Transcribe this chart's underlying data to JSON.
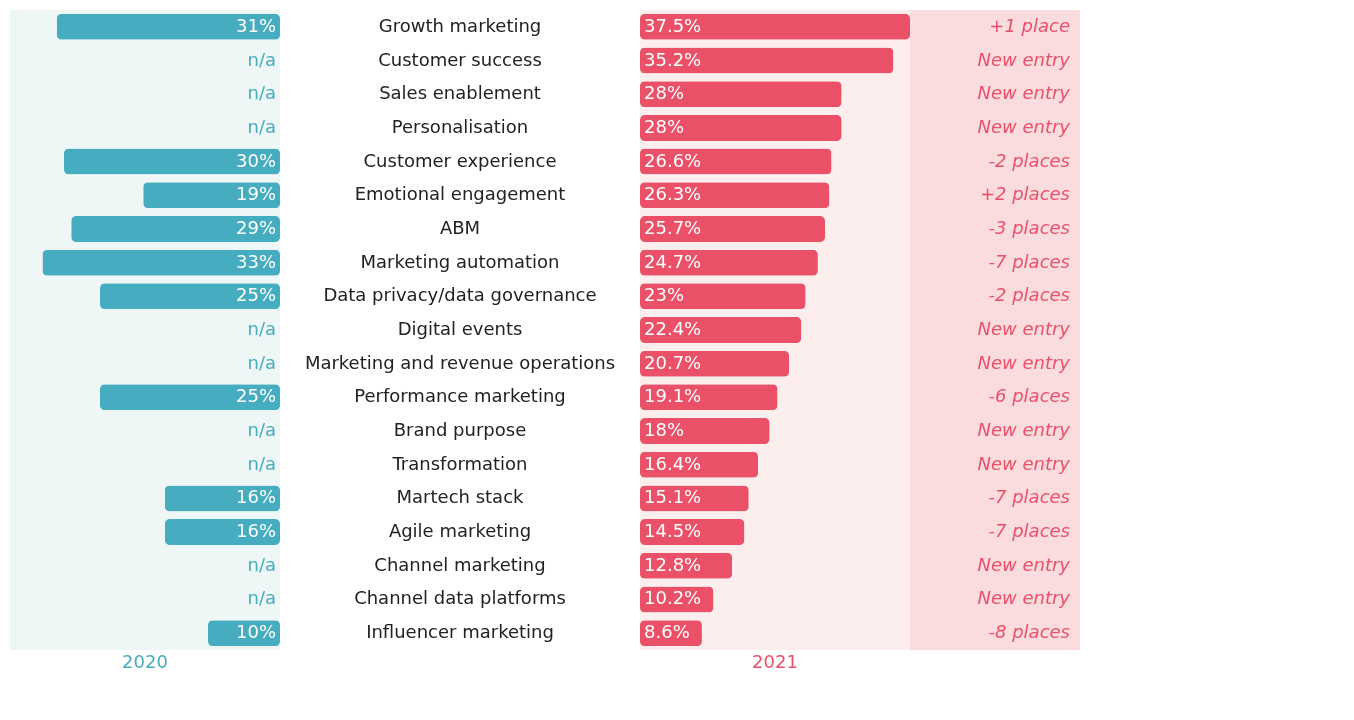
{
  "chart_data": [
    {
      "type": "bar",
      "orientation": "horizontal",
      "categories": [
        "Growth marketing",
        "Customer success",
        "Sales enablement",
        "Personalisation",
        "Customer experience",
        "Emotional engagement",
        "ABM",
        "Marketing automation",
        "Data privacy/data governance",
        "Digital events",
        "Marketing and revenue operations",
        "Performance marketing",
        "Brand purpose",
        "Transformation",
        "Martech stack",
        "Agile marketing",
        "Channel marketing",
        "Channel data platforms",
        "Influencer marketing"
      ],
      "series": [
        {
          "name": "2020",
          "color": "#45adbf",
          "values": [
            31,
            null,
            null,
            null,
            30,
            19,
            29,
            33,
            25,
            null,
            null,
            25,
            null,
            null,
            16,
            16,
            null,
            null,
            10
          ],
          "value_labels": [
            "31%",
            "n/a",
            "n/a",
            "n/a",
            "30%",
            "19%",
            "29%",
            "33%",
            "25%",
            "n/a",
            "n/a",
            "25%",
            "n/a",
            "n/a",
            "16%",
            "16%",
            "n/a",
            "n/a",
            "10%"
          ]
        }
      ]
    },
    {
      "type": "bar",
      "orientation": "horizontal",
      "categories": [
        null,
        null,
        null,
        null,
        null,
        null,
        null,
        null,
        null,
        null,
        null,
        null,
        null,
        null,
        null,
        null,
        null,
        null,
        null
      ],
      "series": [
        {
          "name": "2021",
          "color": "#ea5068",
          "values": [
            37.5,
            35.2,
            28,
            28,
            26.6,
            26.3,
            25.7,
            24.7,
            23,
            22.4,
            20.7,
            19.1,
            18,
            16.4,
            15.1,
            14.5,
            12.8,
            10.2,
            8.6
          ],
          "value_labels": [
            "37.5%",
            "35.2%",
            "28%",
            "28%",
            "26.6%",
            "26.3%",
            "25.7%",
            "24.7%",
            "23%",
            "22.4%",
            "20.7%",
            "19.1%",
            "18%",
            "16.4%",
            "15.1%",
            "14.5%",
            "12.8%",
            "10.2%",
            "8.6%"
          ]
        }
      ],
      "annotations": [
        "+1 place",
        "New entry",
        "New entry",
        "New entry",
        "-2 places",
        "+2 places",
        "-3 places",
        "-7 places",
        "-2 places",
        "New entry",
        "New entry",
        "-6 places",
        "New entry",
        "New entry",
        "-7 places",
        "-7 places",
        "New entry",
        "New entry",
        "-8 places"
      ]
    }
  ]
}
